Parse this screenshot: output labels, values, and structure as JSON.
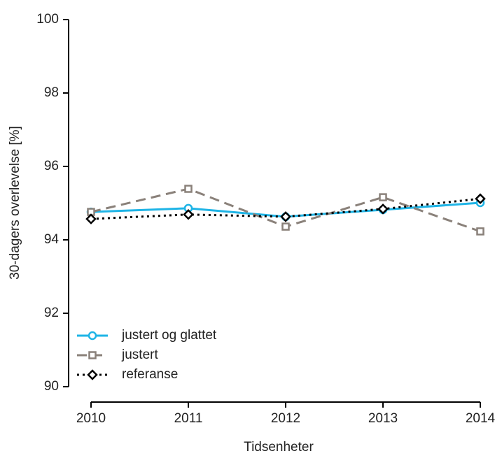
{
  "chart_data": {
    "type": "line",
    "x_label": "Tidsenheter",
    "y_label": "30-dagers overlevelse [%]",
    "x": [
      2010,
      2011,
      2012,
      2013,
      2014
    ],
    "xlim": [
      2010,
      2014
    ],
    "xticks": [
      2010,
      2011,
      2012,
      2013,
      2014
    ],
    "ylim": [
      90,
      100
    ],
    "yticks": [
      90,
      92,
      94,
      96,
      98,
      100
    ],
    "grid": false,
    "legend": "bottom-left",
    "series": [
      {
        "name": "justert og glattet",
        "color": "#1eb4e6",
        "dash": "solid",
        "marker": "circle",
        "values": [
          94.76,
          94.86,
          94.63,
          94.82,
          95.01
        ]
      },
      {
        "name": "justert",
        "color": "#8a817a",
        "dash": "dashed",
        "marker": "square",
        "values": [
          94.76,
          95.39,
          94.36,
          95.16,
          94.23
        ]
      },
      {
        "name": "referanse",
        "color": "#000000",
        "dash": "dotted",
        "marker": "diamond",
        "values": [
          94.57,
          94.69,
          94.63,
          94.84,
          95.12
        ]
      }
    ]
  }
}
